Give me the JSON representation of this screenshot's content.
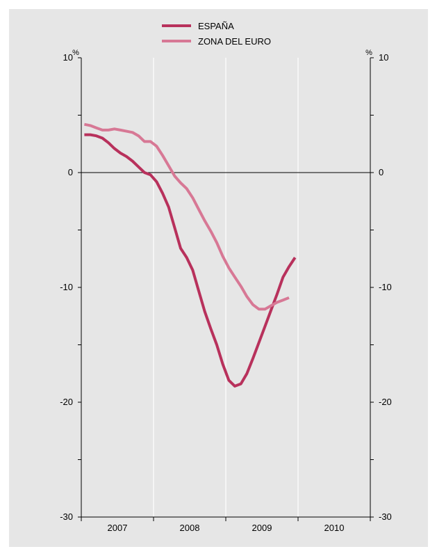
{
  "chart_data": {
    "type": "line",
    "y_unit_left": "%",
    "y_unit_right": "%",
    "ylim": [
      -30,
      10
    ],
    "y_ticks": [
      10,
      0,
      -10,
      -20,
      -30
    ],
    "y_tick_labels": [
      "10",
      "0",
      "-10",
      "-20",
      "-30"
    ],
    "x_categories": [
      "2007",
      "2008",
      "2009",
      "2010"
    ],
    "x_range": [
      2006.583,
      2010.583
    ],
    "legend_position": "top-center",
    "series": [
      {
        "name": "ESPAÑA",
        "color": "#b8315c",
        "points": [
          [
            2006.625,
            3.3
          ],
          [
            2006.708,
            3.3
          ],
          [
            2006.792,
            3.2
          ],
          [
            2006.875,
            3.0
          ],
          [
            2006.958,
            2.6
          ],
          [
            2007.042,
            2.1
          ],
          [
            2007.125,
            1.7
          ],
          [
            2007.208,
            1.4
          ],
          [
            2007.292,
            1.0
          ],
          [
            2007.375,
            0.5
          ],
          [
            2007.458,
            0.0
          ],
          [
            2007.542,
            -0.2
          ],
          [
            2007.625,
            -0.8
          ],
          [
            2007.708,
            -1.8
          ],
          [
            2007.792,
            -3.0
          ],
          [
            2007.875,
            -4.8
          ],
          [
            2007.958,
            -6.6
          ],
          [
            2008.042,
            -7.4
          ],
          [
            2008.125,
            -8.5
          ],
          [
            2008.208,
            -10.3
          ],
          [
            2008.292,
            -12.1
          ],
          [
            2008.375,
            -13.6
          ],
          [
            2008.458,
            -15.0
          ],
          [
            2008.542,
            -16.7
          ],
          [
            2008.625,
            -18.1
          ],
          [
            2008.708,
            -18.6
          ],
          [
            2008.792,
            -18.4
          ],
          [
            2008.875,
            -17.5
          ],
          [
            2008.958,
            -16.2
          ],
          [
            2009.042,
            -14.8
          ],
          [
            2009.125,
            -13.4
          ],
          [
            2009.208,
            -12.0
          ],
          [
            2009.292,
            -10.6
          ],
          [
            2009.375,
            -9.1
          ],
          [
            2009.458,
            -8.2
          ],
          [
            2009.542,
            -7.4
          ]
        ]
      },
      {
        "name": "ZONA DEL EURO",
        "color": "#d77895",
        "points": [
          [
            2006.625,
            4.2
          ],
          [
            2006.708,
            4.1
          ],
          [
            2006.792,
            3.9
          ],
          [
            2006.875,
            3.7
          ],
          [
            2006.958,
            3.7
          ],
          [
            2007.042,
            3.8
          ],
          [
            2007.125,
            3.7
          ],
          [
            2007.208,
            3.6
          ],
          [
            2007.292,
            3.5
          ],
          [
            2007.375,
            3.2
          ],
          [
            2007.458,
            2.7
          ],
          [
            2007.542,
            2.7
          ],
          [
            2007.625,
            2.3
          ],
          [
            2007.708,
            1.5
          ],
          [
            2007.792,
            0.6
          ],
          [
            2007.875,
            -0.3
          ],
          [
            2007.958,
            -0.9
          ],
          [
            2008.042,
            -1.4
          ],
          [
            2008.125,
            -2.2
          ],
          [
            2008.208,
            -3.2
          ],
          [
            2008.292,
            -4.2
          ],
          [
            2008.375,
            -5.1
          ],
          [
            2008.458,
            -6.1
          ],
          [
            2008.542,
            -7.3
          ],
          [
            2008.625,
            -8.3
          ],
          [
            2008.708,
            -9.1
          ],
          [
            2008.792,
            -9.9
          ],
          [
            2008.875,
            -10.8
          ],
          [
            2008.958,
            -11.5
          ],
          [
            2009.042,
            -11.9
          ],
          [
            2009.125,
            -11.9
          ],
          [
            2009.208,
            -11.6
          ],
          [
            2009.292,
            -11.3
          ],
          [
            2009.375,
            -11.1
          ],
          [
            2009.458,
            -10.9
          ]
        ]
      }
    ]
  }
}
